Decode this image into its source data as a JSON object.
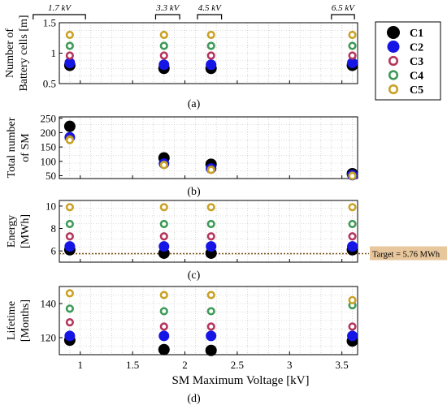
{
  "chart_data": {
    "type": "scatter",
    "xlabel": "SM Maximum Voltage [kV]",
    "x_ticks": [
      "1",
      "1.5",
      "2",
      "2.5",
      "3",
      "3.5"
    ],
    "x_range": [
      0.8,
      3.65
    ],
    "voltage_brackets": [
      {
        "label": "1.7 kV",
        "from": 0.55,
        "to": 1.05
      },
      {
        "label": "3.3 kV",
        "from": 1.72,
        "to": 1.95
      },
      {
        "label": "4.5 kV",
        "from": 2.12,
        "to": 2.35
      },
      {
        "label": "6.5 kV",
        "from": 3.4,
        "to": 3.62
      }
    ],
    "x": [
      0.9,
      1.8,
      2.25,
      3.6
    ],
    "legend": {
      "placement": "right",
      "series": [
        {
          "name": "C1",
          "color": "#000000",
          "marker": "filled-circle"
        },
        {
          "name": "C2",
          "color": "#1515e6",
          "marker": "filled-circle"
        },
        {
          "name": "C3",
          "color": "#b5365e",
          "marker": "ring"
        },
        {
          "name": "C4",
          "color": "#3f9a57",
          "marker": "ring"
        },
        {
          "name": "C5",
          "color": "#c9a227",
          "marker": "ring"
        }
      ]
    },
    "panels": [
      {
        "id": "a",
        "caption": "(a)",
        "ylabel": [
          "Number of",
          "Battery cells [m]"
        ],
        "ylim": [
          0.5,
          1.5
        ],
        "y_ticks": [
          "0.5",
          "1",
          "1.5"
        ],
        "series": [
          {
            "name": "C1",
            "values": [
              0.8,
              0.75,
              0.75,
              0.8
            ]
          },
          {
            "name": "C2",
            "values": [
              0.84,
              0.81,
              0.81,
              0.84
            ]
          },
          {
            "name": "C3",
            "values": [
              0.96,
              0.96,
              0.96,
              0.96
            ]
          },
          {
            "name": "C4",
            "values": [
              1.12,
              1.12,
              1.12,
              1.12
            ]
          },
          {
            "name": "C5",
            "values": [
              1.3,
              1.3,
              1.3,
              1.3
            ]
          }
        ]
      },
      {
        "id": "b",
        "caption": "(b)",
        "ylabel": [
          "Total number",
          "of SM"
        ],
        "ylim": [
          40,
          255
        ],
        "y_ticks": [
          "50",
          "100",
          "150",
          "200",
          "250"
        ],
        "series": [
          {
            "name": "C1",
            "values": [
              222,
              112,
              90,
              57
            ]
          },
          {
            "name": "C2",
            "values": [
              184,
              92,
              75,
              52
            ]
          },
          {
            "name": "C3",
            "values": [
              178,
              89,
              72,
              51
            ]
          },
          {
            "name": "C4",
            "values": [
              176,
              88,
              71,
              50
            ]
          },
          {
            "name": "C5",
            "values": [
              174,
              87,
              70,
              49
            ]
          }
        ]
      },
      {
        "id": "c",
        "caption": "(c)",
        "ylabel": [
          "Energy",
          "[MWh]"
        ],
        "ylim": [
          5,
          10.5
        ],
        "y_ticks": [
          "6",
          "8",
          "10"
        ],
        "target": {
          "value": 5.76,
          "label": "Target = 5.76 MWh"
        },
        "series": [
          {
            "name": "C1",
            "values": [
              6.1,
              5.8,
              5.8,
              6.1
            ]
          },
          {
            "name": "C2",
            "values": [
              6.4,
              6.4,
              6.4,
              6.4
            ]
          },
          {
            "name": "C3",
            "values": [
              7.3,
              7.3,
              7.3,
              7.3
            ]
          },
          {
            "name": "C4",
            "values": [
              8.4,
              8.4,
              8.4,
              8.4
            ]
          },
          {
            "name": "C5",
            "values": [
              9.9,
              9.9,
              9.9,
              9.9
            ]
          }
        ]
      },
      {
        "id": "d",
        "caption": "(d)",
        "ylabel": [
          "Lifetime",
          "[Months]"
        ],
        "ylim": [
          110,
          150
        ],
        "y_ticks": [
          "120",
          "140"
        ],
        "series": [
          {
            "name": "C1",
            "values": [
              118.5,
              113,
              112.5,
              118
            ]
          },
          {
            "name": "C2",
            "values": [
              121,
              121,
              121,
              121
            ]
          },
          {
            "name": "C3",
            "values": [
              129,
              126.5,
              126.5,
              126.5
            ]
          },
          {
            "name": "C4",
            "values": [
              137,
              135.5,
              135.5,
              139
            ]
          },
          {
            "name": "C5",
            "values": [
              146,
              145,
              145,
              142
            ]
          }
        ]
      }
    ]
  }
}
